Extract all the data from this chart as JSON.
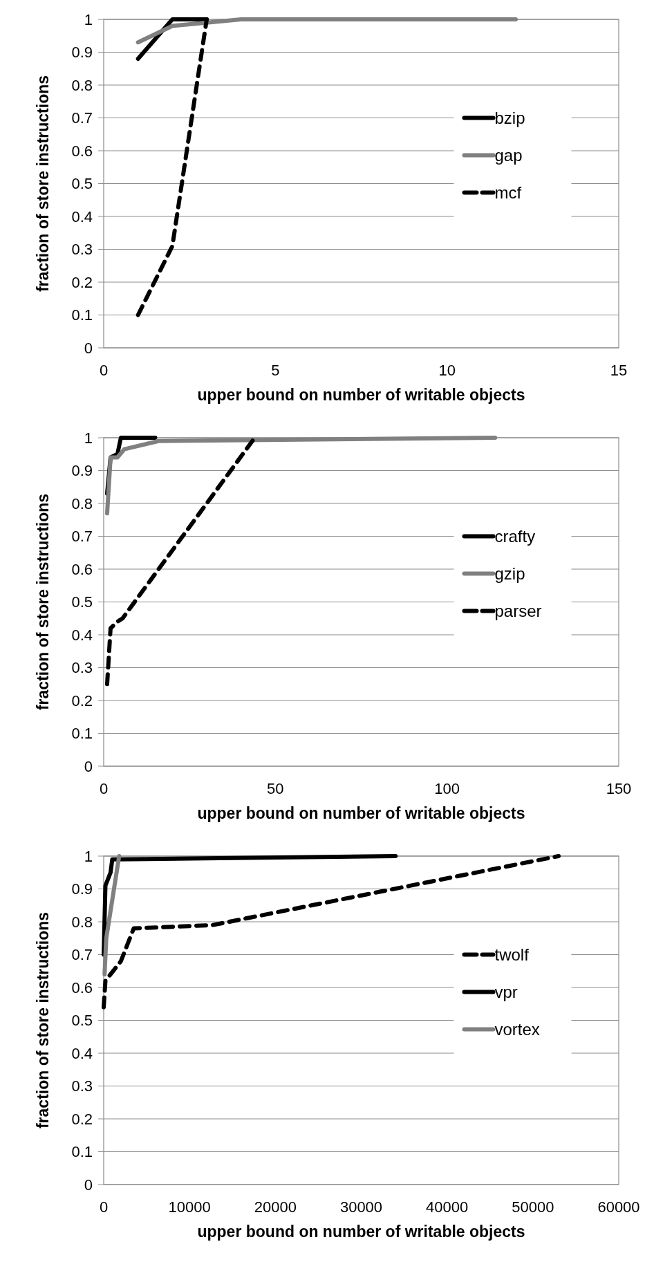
{
  "chart_data": [
    {
      "type": "line",
      "xlabel": "upper bound on number of writable objects",
      "ylabel": "fraction of store instructions",
      "xlim": [
        0,
        15
      ],
      "xticks": [
        0,
        5,
        10,
        15
      ],
      "ylim": [
        0,
        1
      ],
      "yticks": [
        0,
        0.1,
        0.2,
        0.3,
        0.4,
        0.5,
        0.6,
        0.7,
        0.8,
        0.9,
        1
      ],
      "grid": "y",
      "legend": "right",
      "marker": "none",
      "series": [
        {
          "name": "bzip",
          "color": "#000000",
          "line_style": "solid",
          "x": [
            1,
            2,
            3
          ],
          "values": [
            0.88,
            1,
            1
          ]
        },
        {
          "name": "gap",
          "color": "#808080",
          "line_style": "solid",
          "x": [
            1,
            2,
            3,
            4,
            12
          ],
          "values": [
            0.93,
            0.98,
            0.99,
            1,
            1
          ]
        },
        {
          "name": "mcf",
          "color": "#000000",
          "line_style": "dashed",
          "x": [
            1,
            2,
            3
          ],
          "values": [
            0.1,
            0.31,
            1
          ]
        }
      ]
    },
    {
      "type": "line",
      "xlabel": "upper bound on number of writable objects",
      "ylabel": "fraction of store instructions",
      "xlim": [
        0,
        150
      ],
      "xticks": [
        0,
        50,
        100,
        150
      ],
      "ylim": [
        0,
        1
      ],
      "yticks": [
        0,
        0.1,
        0.2,
        0.3,
        0.4,
        0.5,
        0.6,
        0.7,
        0.8,
        0.9,
        1
      ],
      "grid": "y",
      "legend": "right",
      "marker": "none",
      "series": [
        {
          "name": "crafty",
          "color": "#000000",
          "line_style": "solid",
          "x": [
            1,
            2,
            4,
            5,
            15
          ],
          "values": [
            0.83,
            0.94,
            0.95,
            1,
            1
          ]
        },
        {
          "name": "gzip",
          "color": "#808080",
          "line_style": "solid",
          "x": [
            1,
            2,
            4,
            6,
            16,
            114
          ],
          "values": [
            0.77,
            0.94,
            0.94,
            0.965,
            0.99,
            1
          ]
        },
        {
          "name": "parser",
          "color": "#000000",
          "line_style": "dashed",
          "x": [
            1,
            2,
            4,
            5.5,
            44
          ],
          "values": [
            0.25,
            0.42,
            0.44,
            0.45,
            1
          ]
        }
      ]
    },
    {
      "type": "line",
      "xlabel": "upper bound on number of writable objects",
      "ylabel": "fraction of store instructions",
      "xlim": [
        0,
        60000
      ],
      "xticks": [
        0,
        10000,
        20000,
        30000,
        40000,
        50000,
        60000
      ],
      "ylim": [
        0,
        1
      ],
      "yticks": [
        0,
        0.1,
        0.2,
        0.3,
        0.4,
        0.5,
        0.6,
        0.7,
        0.8,
        0.9,
        1
      ],
      "grid": "y",
      "legend": "right",
      "marker": "none",
      "series": [
        {
          "name": "twolf",
          "color": "#000000",
          "line_style": "dashed",
          "x": [
            0,
            200,
            2000,
            3500,
            12700,
            53000
          ],
          "values": [
            0.54,
            0.62,
            0.68,
            0.78,
            0.79,
            1
          ]
        },
        {
          "name": "vpr",
          "color": "#000000",
          "line_style": "solid",
          "x": [
            0,
            200,
            800,
            1000,
            1500,
            34000
          ],
          "values": [
            0.7,
            0.91,
            0.95,
            0.99,
            0.99,
            1
          ]
        },
        {
          "name": "vortex",
          "color": "#808080",
          "line_style": "solid",
          "x": [
            100,
            300,
            1800
          ],
          "values": [
            0.64,
            0.75,
            1
          ]
        }
      ]
    }
  ]
}
